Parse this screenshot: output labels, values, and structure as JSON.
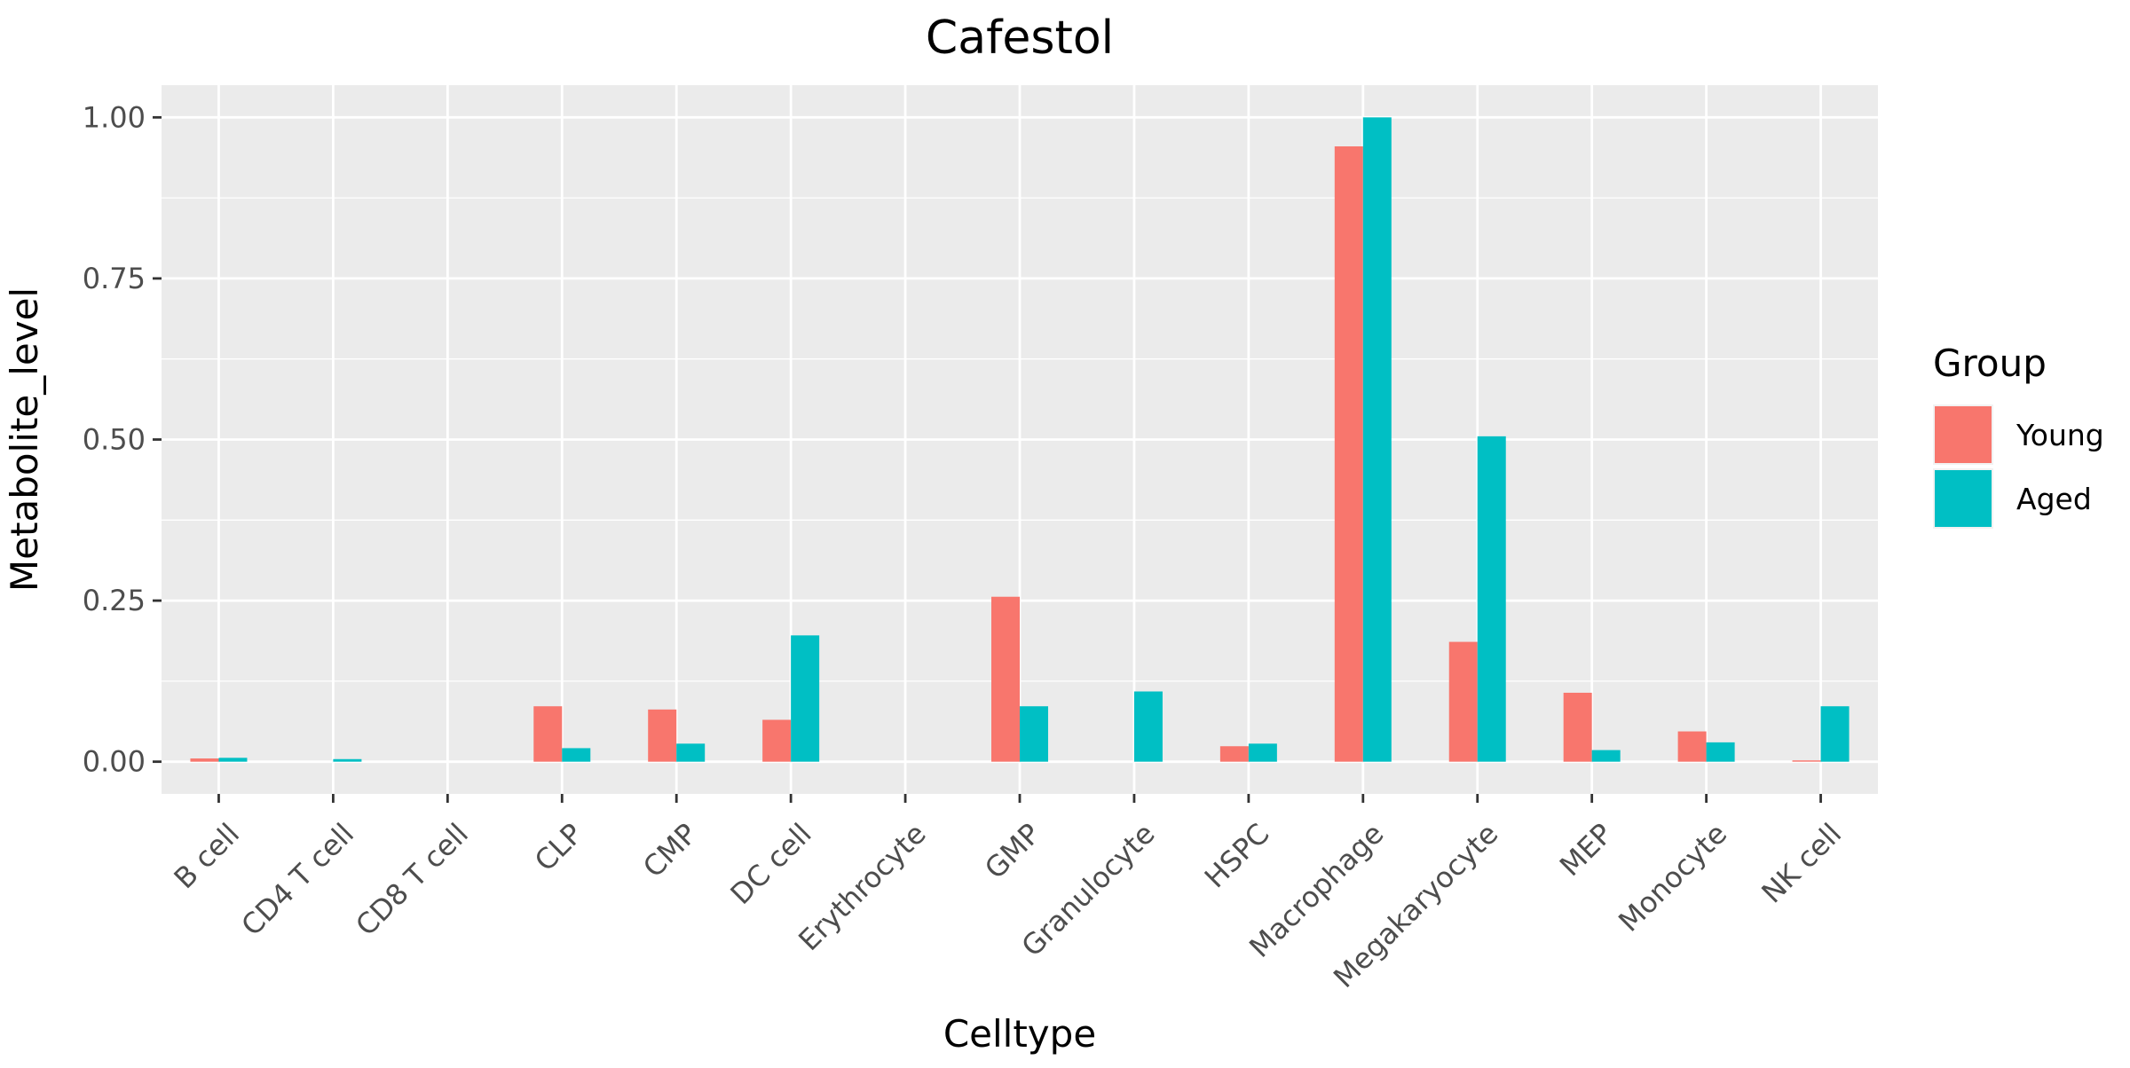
{
  "chart_data": {
    "type": "bar",
    "title": "Cafestol",
    "xlabel": "Celltype",
    "ylabel": "Metabolite_level",
    "ylim": [
      -0.05,
      1.05
    ],
    "yticks": [
      0.0,
      0.25,
      0.5,
      0.75,
      1.0
    ],
    "ytick_labels": [
      "0.00",
      "0.25",
      "0.50",
      "0.75",
      "1.00"
    ],
    "grid": true,
    "legend_position": "right",
    "legend_title": "Group",
    "categories": [
      "B cell",
      "CD4 T cell",
      "CD8 T cell",
      "CLP",
      "CMP",
      "DC cell",
      "Erythrocyte",
      "GMP",
      "Granulocyte",
      "HSPC",
      "Macrophage",
      "Megakaryocyte",
      "MEP",
      "Monocyte",
      "NK cell"
    ],
    "series": [
      {
        "name": "Young",
        "color": "#F8766D",
        "values": [
          0.005,
          0.0,
          0.0,
          0.086,
          0.081,
          0.065,
          0.0,
          0.256,
          0.0,
          0.024,
          0.955,
          0.186,
          0.107,
          0.047,
          0.002
        ]
      },
      {
        "name": "Aged",
        "color": "#00BFC4",
        "values": [
          0.006,
          0.004,
          0.0,
          0.021,
          0.028,
          0.196,
          0.0,
          0.086,
          0.109,
          0.028,
          1.0,
          0.505,
          0.018,
          0.03,
          0.086
        ]
      }
    ]
  }
}
